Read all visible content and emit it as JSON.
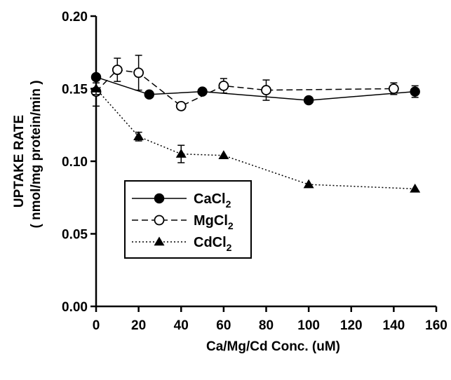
{
  "chart_data": {
    "type": "line",
    "xlabel": "Ca/Mg/Cd Conc. (uM)",
    "ylabel_line1": "UPTAKE RATE",
    "ylabel_line2": "( nmol/mg protein/min )",
    "xlim": [
      0,
      160
    ],
    "ylim": [
      0.0,
      0.2
    ],
    "x_ticks": [
      0,
      20,
      40,
      60,
      80,
      100,
      120,
      140,
      160
    ],
    "x_tick_labels": [
      "0",
      "20",
      "40",
      "60",
      "80",
      "100",
      "120",
      "140",
      "160"
    ],
    "y_ticks": [
      0.0,
      0.05,
      0.1,
      0.15,
      0.2
    ],
    "y_tick_labels": [
      "0.00",
      "0.05",
      "0.10",
      "0.15",
      "0.20"
    ],
    "grid": false,
    "legend_position": "lower-left",
    "series": [
      {
        "name": "CaCl",
        "name_sub": "2",
        "marker": "filled-circle",
        "line_style": "solid",
        "points": [
          {
            "x": 0,
            "y": 0.158,
            "err": 0.0
          },
          {
            "x": 25,
            "y": 0.146,
            "err": 0.0
          },
          {
            "x": 50,
            "y": 0.148,
            "err": 0.0
          },
          {
            "x": 100,
            "y": 0.142,
            "err": 0.0
          },
          {
            "x": 150,
            "y": 0.148,
            "err": 0.004
          }
        ]
      },
      {
        "name": "MgCl",
        "name_sub": "2",
        "marker": "open-circle",
        "line_style": "dashed",
        "points": [
          {
            "x": 0,
            "y": 0.148,
            "err": 0.01
          },
          {
            "x": 10,
            "y": 0.163,
            "err": 0.008
          },
          {
            "x": 20,
            "y": 0.161,
            "err": 0.012
          },
          {
            "x": 40,
            "y": 0.138,
            "err": 0.0
          },
          {
            "x": 60,
            "y": 0.152,
            "err": 0.005
          },
          {
            "x": 80,
            "y": 0.149,
            "err": 0.007
          },
          {
            "x": 140,
            "y": 0.15,
            "err": 0.004
          }
        ]
      },
      {
        "name": "CdCl",
        "name_sub": "2",
        "marker": "filled-triangle",
        "line_style": "dotted",
        "points": [
          {
            "x": 0,
            "y": 0.15,
            "err": 0.004
          },
          {
            "x": 20,
            "y": 0.117,
            "err": 0.003
          },
          {
            "x": 40,
            "y": 0.105,
            "err": 0.006
          },
          {
            "x": 60,
            "y": 0.104,
            "err": 0.0
          },
          {
            "x": 100,
            "y": 0.084,
            "err": 0.0
          },
          {
            "x": 150,
            "y": 0.081,
            "err": 0.0
          }
        ]
      }
    ]
  }
}
